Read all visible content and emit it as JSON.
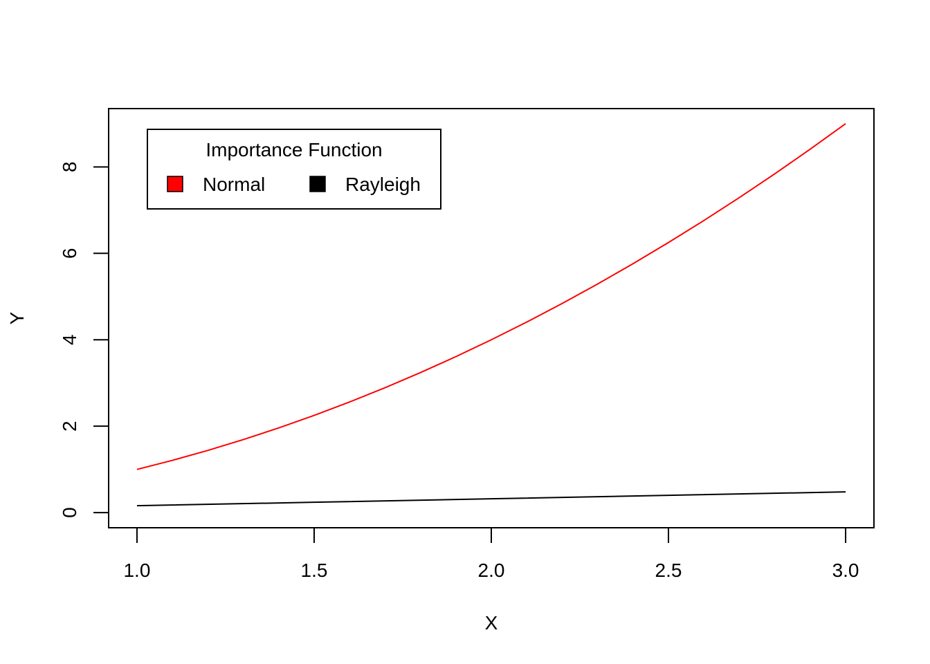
{
  "chart_data": {
    "type": "line",
    "title": "",
    "xlabel": "X",
    "ylabel": "Y",
    "xlim": [
      0.92,
      3.08
    ],
    "ylim": [
      -0.35,
      9.35
    ],
    "x_ticks": [
      "1.0",
      "1.5",
      "2.0",
      "2.5",
      "3.0"
    ],
    "y_ticks": [
      "0",
      "2",
      "4",
      "6",
      "8"
    ],
    "grid": false,
    "legend": {
      "title": "Importance Function",
      "position": "top-left",
      "entries": [
        "Normal",
        "Rayleigh"
      ]
    },
    "series": [
      {
        "name": "Normal",
        "color": "#ff0000",
        "x": [
          1.0,
          1.1,
          1.2,
          1.3,
          1.4,
          1.5,
          1.6,
          1.7,
          1.8,
          1.9,
          2.0,
          2.1,
          2.2,
          2.3,
          2.4,
          2.5,
          2.6,
          2.7,
          2.8,
          2.9,
          3.0
        ],
        "y": [
          1.0,
          1.21,
          1.44,
          1.69,
          1.96,
          2.25,
          2.56,
          2.89,
          3.24,
          3.61,
          4.0,
          4.41,
          4.84,
          5.29,
          5.76,
          6.25,
          6.76,
          7.29,
          7.84,
          8.41,
          9.0
        ]
      },
      {
        "name": "Rayleigh",
        "color": "#000000",
        "x": [
          1.0,
          1.5,
          2.0,
          2.5,
          3.0
        ],
        "y": [
          0.16,
          0.24,
          0.32,
          0.4,
          0.48
        ]
      }
    ]
  }
}
